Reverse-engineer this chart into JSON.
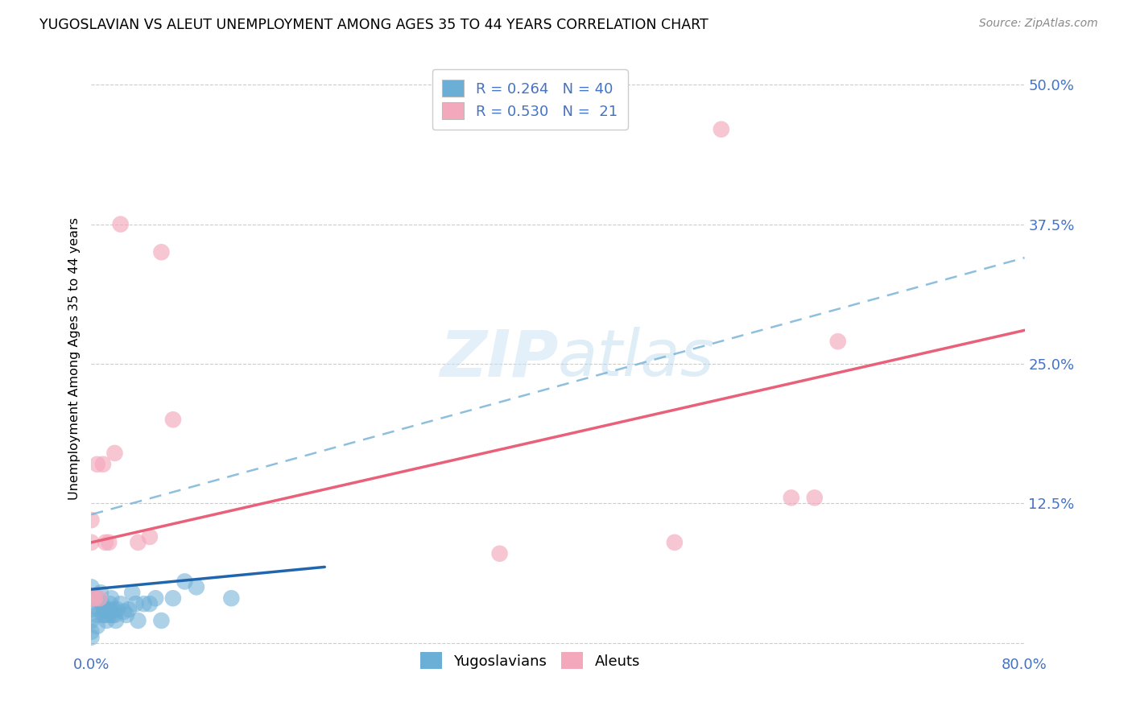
{
  "title": "YUGOSLAVIAN VS ALEUT UNEMPLOYMENT AMONG AGES 35 TO 44 YEARS CORRELATION CHART",
  "source": "Source: ZipAtlas.com",
  "ylabel": "Unemployment Among Ages 35 to 44 years",
  "xlim": [
    0.0,
    0.8
  ],
  "ylim": [
    -0.01,
    0.52
  ],
  "ytick_positions": [
    0.0,
    0.125,
    0.25,
    0.375,
    0.5
  ],
  "ytick_labels": [
    "",
    "12.5%",
    "25.0%",
    "37.5%",
    "50.0%"
  ],
  "blue_color": "#6baed6",
  "pink_color": "#f4a8bc",
  "blue_line_color": "#2166ac",
  "pink_line_color": "#e8607a",
  "dash_line_color": "#7ab4d8",
  "text_blue": "#4472c4",
  "watermark_color": "#cce4f5",
  "yugoslavian_x": [
    0.0,
    0.0,
    0.0,
    0.0,
    0.0,
    0.0,
    0.005,
    0.005,
    0.005,
    0.007,
    0.008,
    0.009,
    0.01,
    0.011,
    0.012,
    0.013,
    0.014,
    0.015,
    0.016,
    0.017,
    0.018,
    0.019,
    0.02,
    0.021,
    0.022,
    0.025,
    0.028,
    0.03,
    0.032,
    0.035,
    0.038,
    0.04,
    0.045,
    0.05,
    0.055,
    0.06,
    0.07,
    0.08,
    0.09,
    0.12
  ],
  "yugoslavian_y": [
    0.005,
    0.01,
    0.02,
    0.03,
    0.04,
    0.05,
    0.015,
    0.025,
    0.04,
    0.03,
    0.045,
    0.035,
    0.025,
    0.03,
    0.025,
    0.02,
    0.03,
    0.025,
    0.035,
    0.04,
    0.025,
    0.03,
    0.025,
    0.02,
    0.03,
    0.035,
    0.028,
    0.025,
    0.03,
    0.045,
    0.035,
    0.02,
    0.035,
    0.035,
    0.04,
    0.02,
    0.04,
    0.055,
    0.05,
    0.04
  ],
  "aleut_x": [
    0.0,
    0.0,
    0.001,
    0.003,
    0.005,
    0.007,
    0.01,
    0.012,
    0.015,
    0.02,
    0.025,
    0.04,
    0.05,
    0.06,
    0.07,
    0.35,
    0.5,
    0.54,
    0.6,
    0.62,
    0.64
  ],
  "aleut_y": [
    0.09,
    0.11,
    0.04,
    0.04,
    0.16,
    0.04,
    0.16,
    0.09,
    0.09,
    0.17,
    0.375,
    0.09,
    0.095,
    0.35,
    0.2,
    0.08,
    0.09,
    0.46,
    0.13,
    0.13,
    0.27
  ],
  "blue_line_x0": 0.0,
  "blue_line_x1": 0.2,
  "blue_line_y0": 0.048,
  "blue_line_y1": 0.068,
  "dash_line_x0": 0.0,
  "dash_line_x1": 0.8,
  "dash_line_y0": 0.115,
  "dash_line_y1": 0.345,
  "pink_line_x0": 0.0,
  "pink_line_x1": 0.8,
  "pink_line_y0": 0.09,
  "pink_line_y1": 0.28
}
